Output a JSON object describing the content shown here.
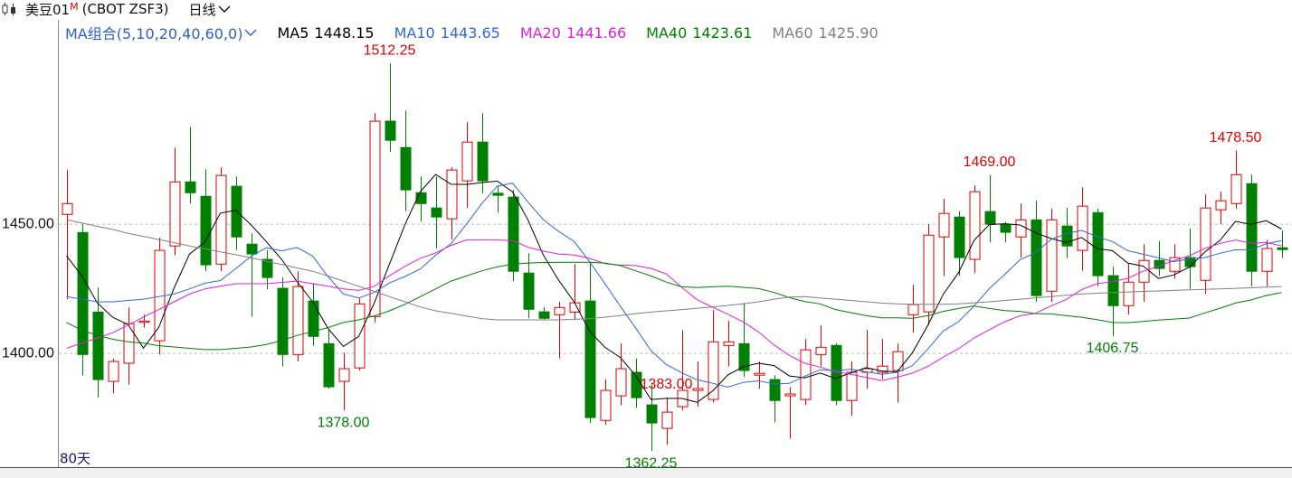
{
  "chart_data": {
    "type": "candlestick",
    "title": "美豆01",
    "title_mark": "M",
    "subtitle": "(CBOT ZSF3)",
    "period": "日线",
    "ma_group": "MA组合(5,10,20,40,60,0)",
    "span_label": "80天",
    "up_color": "#e00000",
    "down_color": "#008000",
    "ylim": [
      1356,
      1520
    ],
    "yticks": [
      {
        "value": 1400,
        "label": "1400.00"
      },
      {
        "value": 1450,
        "label": "1450.00"
      }
    ],
    "grid": true,
    "open": [
      1453.8,
      1446.8,
      1416,
      1389.2,
      1396.2,
      1412,
      1404.9,
      1441.6,
      1466.4,
      1460.8,
      1434.6,
      1464.7,
      1442.3,
      1436.4,
      1425.2,
      1399.6,
      1420.3,
      1403.8,
      1389.2,
      1394.4,
      1414.3,
      1489.9,
      1479.7,
      1462.2,
      1456.3,
      1452.1,
      1466.8,
      1481.8,
      1462,
      1460.5,
      1431.1,
      1416.1,
      1415,
      1416,
      1420.3,
      1374.1,
      1383.6,
      1392.7,
      1380.1,
      1371,
      1379.4,
      1385.7,
      1382.2,
      1403.1,
      1403.8,
      1391.6,
      1389.9,
      1383.6,
      1382.2,
      1399.6,
      1403.1,
      1381.8,
      1392.7,
      1392.7,
      1393.4,
      1415,
      1416.1,
      1445.1,
      1452.8,
      1436.4,
      1454.9,
      1450,
      1445.1,
      1451.7,
      1424.1,
      1449.3,
      1439.9,
      1454.5,
      1430.1,
      1418.5,
      1427.6,
      1436,
      1431.8,
      1437.1,
      1428.3,
      1455.6,
      1458,
      1465.7,
      1431.8,
      1440.9
    ],
    "high": [
      1471,
      1450,
      1425.5,
      1398,
      1417.8,
      1415,
      1444.8,
      1479.7,
      1487.7,
      1471.3,
      1472,
      1468.5,
      1446.5,
      1439.9,
      1429.4,
      1431.8,
      1427.3,
      1409.1,
      1400.3,
      1421.3,
      1493,
      1512.25,
      1494,
      1468.5,
      1468.5,
      1472,
      1489.5,
      1493,
      1465,
      1463.3,
      1438.8,
      1418,
      1420,
      1434.6,
      1435,
      1390,
      1403.8,
      1398,
      1388,
      1383,
      1409,
      1396.9,
      1416.8,
      1412.6,
      1419.6,
      1396.9,
      1391.6,
      1387,
      1405.6,
      1410.8,
      1404,
      1396.9,
      1409.1,
      1405.6,
      1403.8,
      1426.6,
      1450,
      1459.8,
      1455,
      1465,
      1469,
      1451,
      1458,
      1459.1,
      1456,
      1456.3,
      1464.3,
      1456,
      1433.6,
      1435,
      1442.3,
      1443.4,
      1442.3,
      1448.3,
      1461.5,
      1462.6,
      1478.5,
      1469.2,
      1444,
      1447.6
    ],
    "low": [
      1421,
      1391.6,
      1383,
      1384.6,
      1388,
      1410,
      1399.6,
      1438,
      1458,
      1431.8,
      1431.8,
      1440,
      1414.3,
      1424.8,
      1395,
      1396.9,
      1403,
      1386.4,
      1378,
      1393.4,
      1412,
      1478,
      1455,
      1451,
      1440.6,
      1444.1,
      1456.3,
      1462,
      1454.5,
      1428,
      1413.6,
      1413,
      1398,
      1413,
      1373,
      1372.4,
      1380,
      1379,
      1362.25,
      1364.7,
      1378,
      1379.4,
      1381,
      1395,
      1391,
      1386.4,
      1373.4,
      1367,
      1380,
      1395,
      1380,
      1375.9,
      1386.4,
      1390,
      1381,
      1408,
      1411,
      1430,
      1430,
      1431.1,
      1443,
      1443,
      1437,
      1420,
      1420,
      1437,
      1432,
      1426,
      1406.75,
      1415,
      1420,
      1430,
      1429,
      1425,
      1423,
      1450,
      1456,
      1426,
      1426,
      1437
    ],
    "close": [
      1458,
      1399.6,
      1389.9,
      1396.9,
      1411.5,
      1412.5,
      1439.9,
      1466.4,
      1462.2,
      1434.3,
      1468.9,
      1445.1,
      1438.5,
      1429.4,
      1399.6,
      1425.9,
      1406.6,
      1387.1,
      1394.1,
      1419.2,
      1489.9,
      1482.5,
      1463.3,
      1458,
      1452.8,
      1471,
      1481.8,
      1466.8,
      1461.2,
      1431.8,
      1417.1,
      1413.6,
      1417.8,
      1419.6,
      1375.2,
      1385.7,
      1394.1,
      1382.9,
      1373.1,
      1377.3,
      1385.7,
      1386.4,
      1404.5,
      1404.5,
      1393.4,
      1392.3,
      1381.8,
      1384.3,
      1401.4,
      1402.4,
      1381.8,
      1392.7,
      1394.1,
      1395.1,
      1400.7,
      1418.9,
      1445.8,
      1454.2,
      1437.1,
      1462.6,
      1450,
      1446.9,
      1451.7,
      1422.4,
      1451.7,
      1441.6,
      1457,
      1430.1,
      1418.5,
      1427.6,
      1436,
      1432.9,
      1437.1,
      1433.6,
      1456.3,
      1459.1,
      1469.2,
      1431.8,
      1440.6,
      1440.2
    ],
    "annotations": [
      {
        "value": 1512.25,
        "label": "1512.25"
      },
      {
        "value": 1383,
        "label": "1383.00"
      },
      {
        "value": 1378,
        "label": "1378.00"
      },
      {
        "value": 1362.25,
        "label": "1362.25"
      },
      {
        "value": 1469,
        "label": "1469.00"
      },
      {
        "value": 1406.75,
        "label": "1406.75"
      },
      {
        "value": 1478.5,
        "label": "1478.50"
      }
    ],
    "series": [
      {
        "name": "MA5",
        "color": "#000000",
        "last": {
          "value": 1448.15,
          "label": "1448.15"
        },
        "values": [
          1437.8,
          1430,
          1419.6,
          1414,
          1411.2,
          1402.1,
          1410.1,
          1425.4,
          1438.5,
          1443.1,
          1454.3,
          1455.4,
          1449.8,
          1443.2,
          1436.3,
          1427.7,
          1420,
          1409.7,
          1402.7,
          1406.6,
          1419.4,
          1434.6,
          1449.8,
          1462.6,
          1469.3,
          1465.5,
          1465.4,
          1466.1,
          1466.7,
          1462.5,
          1451.7,
          1438.1,
          1428.3,
          1420,
          1408.7,
          1402.4,
          1398.5,
          1391.5,
          1382.2,
          1382.6,
          1382.6,
          1381.1,
          1385.4,
          1391.7,
          1394.9,
          1396.2,
          1395.3,
          1391.3,
          1390.6,
          1392.4,
          1390.3,
          1392.5,
          1394.5,
          1393.2,
          1392.9,
          1400.3,
          1410.9,
          1422.9,
          1431.3,
          1443.7,
          1449.9,
          1450.2,
          1449.7,
          1446.7,
          1444.5,
          1442.9,
          1444.9,
          1440.6,
          1439.8,
          1435,
          1433.8,
          1429,
          1430.4,
          1433.4,
          1439.2,
          1443.8,
          1451.1,
          1450,
          1451.4,
          1448.15
        ]
      },
      {
        "name": "MA10",
        "color": "#2f6ad8",
        "last": {
          "value": 1443.65,
          "label": "1443.65"
        },
        "values": [
          1422,
          1421,
          1420,
          1420,
          1420.5,
          1421,
          1422,
          1423,
          1425,
          1427.2,
          1428.2,
          1432.8,
          1437.6,
          1440.9,
          1439.7,
          1441,
          1437.7,
          1429.8,
          1423,
          1421.5,
          1423.6,
          1427.3,
          1429.8,
          1432.7,
          1438,
          1442.5,
          1450,
          1458,
          1464.7,
          1465.9,
          1458.6,
          1451.8,
          1447.2,
          1443.4,
          1435.6,
          1427.1,
          1418.3,
          1409.9,
          1401.1,
          1395.7,
          1392.5,
          1389.8,
          1388.5,
          1387,
          1388.8,
          1389.4,
          1388.2,
          1388.4,
          1391.2,
          1393.7,
          1393.3,
          1393.9,
          1392.9,
          1391.9,
          1392.7,
          1395.3,
          1401.7,
          1408.7,
          1412.3,
          1418.3,
          1425.1,
          1430.6,
          1436.3,
          1439,
          1444.1,
          1446.4,
          1447.6,
          1445.2,
          1443.3,
          1439.8,
          1438.4,
          1437,
          1435.5,
          1436.6,
          1437.1,
          1438.8,
          1440.1,
          1440.2,
          1442.4,
          1443.65
        ]
      },
      {
        "name": "MA20",
        "color": "#e020e0",
        "last": {
          "value": 1441.66,
          "label": "1441.66"
        },
        "values": [
          1402,
          1404,
          1406,
          1408,
          1411,
          1414,
          1417,
          1420,
          1423,
          1425,
          1426,
          1427,
          1427,
          1427,
          1427.5,
          1428,
          1427,
          1426,
          1425,
          1424.4,
          1425.9,
          1430.1,
          1433.7,
          1436.8,
          1438.9,
          1441.8,
          1443.9,
          1443.9,
          1443.9,
          1443.7,
          1441.1,
          1439.6,
          1438.5,
          1438.1,
          1436.8,
          1434.8,
          1434.2,
          1434,
          1432.9,
          1430.8,
          1425.6,
          1420.8,
          1417.9,
          1415.2,
          1412.2,
          1408.3,
          1403.3,
          1399.2,
          1396.2,
          1394.7,
          1392.9,
          1391.9,
          1390.7,
          1389.5,
          1390.8,
          1392.4,
          1395,
          1398.6,
          1401.8,
          1406,
          1409.2,
          1412.3,
          1414.6,
          1415.5,
          1418.4,
          1420.9,
          1424.7,
          1427,
          1427.8,
          1429.1,
          1431.8,
          1433.8,
          1435.9,
          1437.8,
          1440.6,
          1442.6,
          1443.9,
          1442.7,
          1442.9,
          1441.66
        ]
      },
      {
        "name": "MA40",
        "color": "#008000",
        "last": {
          "value": 1423.61,
          "label": "1423.61"
        },
        "values": [
          1412,
          1409,
          1407,
          1405.5,
          1404.5,
          1404,
          1403,
          1402.5,
          1402,
          1401.5,
          1401.5,
          1402,
          1402.5,
          1403.5,
          1405,
          1407,
          1408.5,
          1410,
          1412,
          1413,
          1414.5,
          1416.5,
          1419,
          1422,
          1425,
          1428,
          1430,
          1432,
          1433.5,
          1434.6,
          1435,
          1435.2,
          1435.3,
          1435.3,
          1435.3,
          1435,
          1434,
          1432,
          1430,
          1427.6,
          1425.8,
          1425.5,
          1425.8,
          1426,
          1425.6,
          1425.1,
          1423.6,
          1421.6,
          1420.1,
          1419.2,
          1417,
          1415.8,
          1414.6,
          1413.8,
          1413.8,
          1413.6,
          1414.6,
          1416.3,
          1417.4,
          1418.4,
          1417.4,
          1416.6,
          1416.3,
          1415.4,
          1415.3,
          1414.6,
          1414,
          1413.1,
          1412,
          1411.9,
          1412.4,
          1412.9,
          1413.3,
          1413.7,
          1415.7,
          1417.5,
          1419.5,
          1420.7,
          1422.4,
          1423.61
        ]
      },
      {
        "name": "MA60",
        "color": "#808080",
        "last": {
          "value": 1425.9,
          "label": "1425.90"
        },
        "values": [
          1451.7,
          1450.5,
          1449.2,
          1448,
          1446.5,
          1445.3,
          1444.1,
          1442.9,
          1441.6,
          1440.5,
          1439.3,
          1438.2,
          1437,
          1435.7,
          1434.4,
          1433.1,
          1431.8,
          1430,
          1428,
          1426,
          1424,
          1422,
          1420,
          1418,
          1416.5,
          1415.5,
          1414.5,
          1413.5,
          1413,
          1413,
          1413,
          1413,
          1413,
          1413.2,
          1413.5,
          1414,
          1414.7,
          1415.4,
          1416,
          1416.5,
          1417,
          1417.5,
          1418,
          1418.6,
          1419.2,
          1420,
          1421,
          1421.8,
          1422,
          1421.5,
          1421,
          1420.5,
          1420,
          1419.5,
          1419.2,
          1419,
          1419,
          1419,
          1419.2,
          1419.6,
          1420,
          1420.5,
          1421,
          1421.5,
          1422,
          1422.5,
          1423,
          1423.3,
          1423.6,
          1423.8,
          1424,
          1424.2,
          1424.4,
          1424.6,
          1424.8,
          1425,
          1425.2,
          1425.4,
          1425.7,
          1425.9
        ]
      }
    ]
  }
}
